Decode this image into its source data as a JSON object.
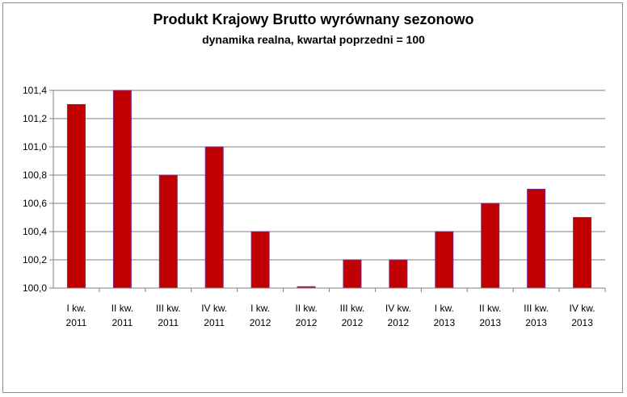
{
  "chart_data": {
    "type": "bar",
    "title": "Produkt Krajowy Brutto wyrównany sezonowo",
    "subtitle": "dynamika realna, kwartał poprzedni = 100",
    "categories": [
      [
        "I kw.",
        "2011"
      ],
      [
        "II kw.",
        "2011"
      ],
      [
        "III kw.",
        "2011"
      ],
      [
        "IV kw.",
        "2011"
      ],
      [
        "I kw.",
        "2012"
      ],
      [
        "II kw.",
        "2012"
      ],
      [
        "III kw.",
        "2012"
      ],
      [
        "IV kw.",
        "2012"
      ],
      [
        "I kw.",
        "2013"
      ],
      [
        "II kw.",
        "2013"
      ],
      [
        "III kw.",
        "2013"
      ],
      [
        "IV kw.",
        "2013"
      ]
    ],
    "values": [
      101.3,
      101.4,
      100.8,
      101.0,
      100.4,
      100.01,
      100.2,
      100.2,
      100.4,
      100.6,
      100.7,
      100.5
    ],
    "ylim": [
      100.0,
      101.4
    ],
    "yticks": [
      "100,0",
      "100,2",
      "100,4",
      "100,6",
      "100,8",
      "101,0",
      "101,2",
      "101,4"
    ],
    "grid": true,
    "colors": {
      "bar": "#c00000",
      "bar_edge": "#7a2a8c",
      "grid": "#7f7f7f"
    }
  }
}
